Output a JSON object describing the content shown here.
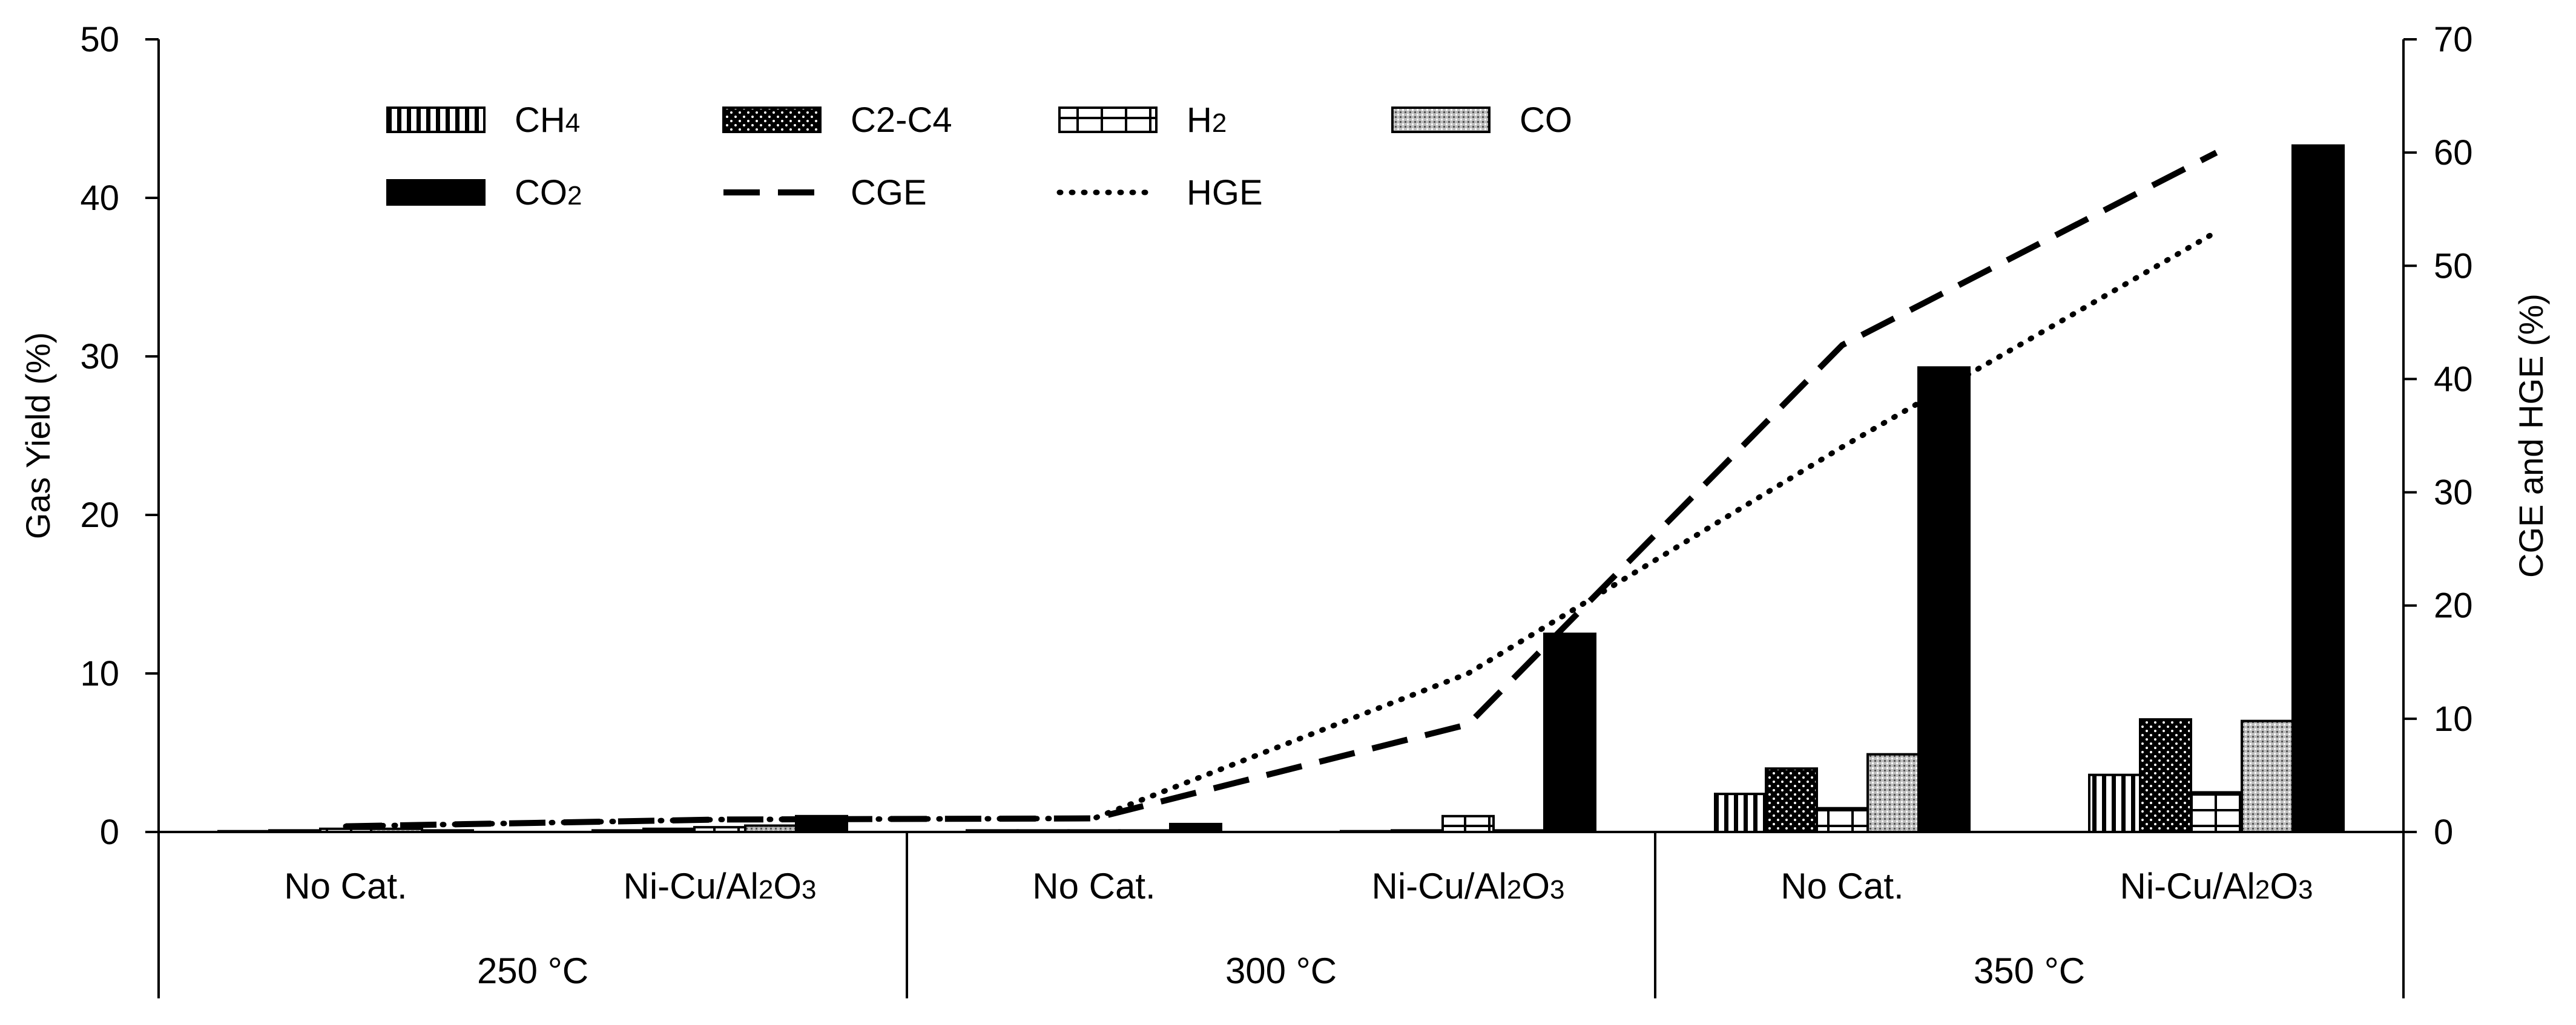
{
  "chart_data": {
    "type": "bar",
    "title": "",
    "ylabel": "Gas Yield (%)",
    "y2label": "CGE and HGE (%)",
    "ylim": [
      0,
      50
    ],
    "y2lim": [
      0,
      70
    ],
    "yticks": [
      "0",
      "10",
      "20",
      "30",
      "40",
      "50"
    ],
    "y2ticks": [
      "0",
      "10",
      "20",
      "30",
      "40",
      "50",
      "60",
      "70"
    ],
    "groups": [
      {
        "temp": "250 °C",
        "cats": [
          {
            "label": "No Cat.",
            "sub": "",
            "after": ""
          },
          {
            "label": "Ni-Cu/Al",
            "sub": "2",
            "after": "O",
            "sub2": "3"
          }
        ]
      },
      {
        "temp": "300 °C",
        "cats": [
          {
            "label": "No Cat.",
            "sub": "",
            "after": ""
          },
          {
            "label": "Ni-Cu/Al",
            "sub": "2",
            "after": "O",
            "sub2": "3"
          }
        ]
      },
      {
        "temp": "350 °C",
        "cats": [
          {
            "label": "No Cat.",
            "sub": "",
            "after": ""
          },
          {
            "label": "Ni-Cu/Al",
            "sub": "2",
            "after": "O",
            "sub2": "3"
          }
        ]
      }
    ],
    "series": [
      {
        "name": "CH",
        "sub": "4",
        "pattern": "vstripes",
        "values": [
          0.05,
          0.1,
          0.1,
          0.05,
          2.4,
          3.6
        ]
      },
      {
        "name": "C2-C4",
        "sub": "",
        "pattern": "dots",
        "values": [
          0.1,
          0.2,
          0.1,
          0.1,
          4.0,
          7.1
        ]
      },
      {
        "name": "H",
        "sub": "2",
        "pattern": "brick",
        "values": [
          0.2,
          0.3,
          0.1,
          1.0,
          1.5,
          2.5
        ]
      },
      {
        "name": "CO",
        "sub": "",
        "pattern": "stipple",
        "values": [
          0.2,
          0.4,
          0.1,
          0.1,
          4.9,
          7.0
        ]
      },
      {
        "name": "CO",
        "sub": "2",
        "pattern": "solid",
        "values": [
          0.1,
          1.0,
          0.5,
          12.5,
          29.3,
          43.3
        ]
      }
    ],
    "lines": [
      {
        "name": "CGE",
        "style": "dashed",
        "values": [
          0.5,
          1.1,
          1.2,
          9.5,
          43.0,
          60.0
        ]
      },
      {
        "name": "HGE",
        "style": "dotted",
        "values": [
          0.5,
          1.1,
          1.2,
          14.0,
          34.0,
          53.0
        ]
      }
    ],
    "legend_position": "top-left, inside"
  }
}
